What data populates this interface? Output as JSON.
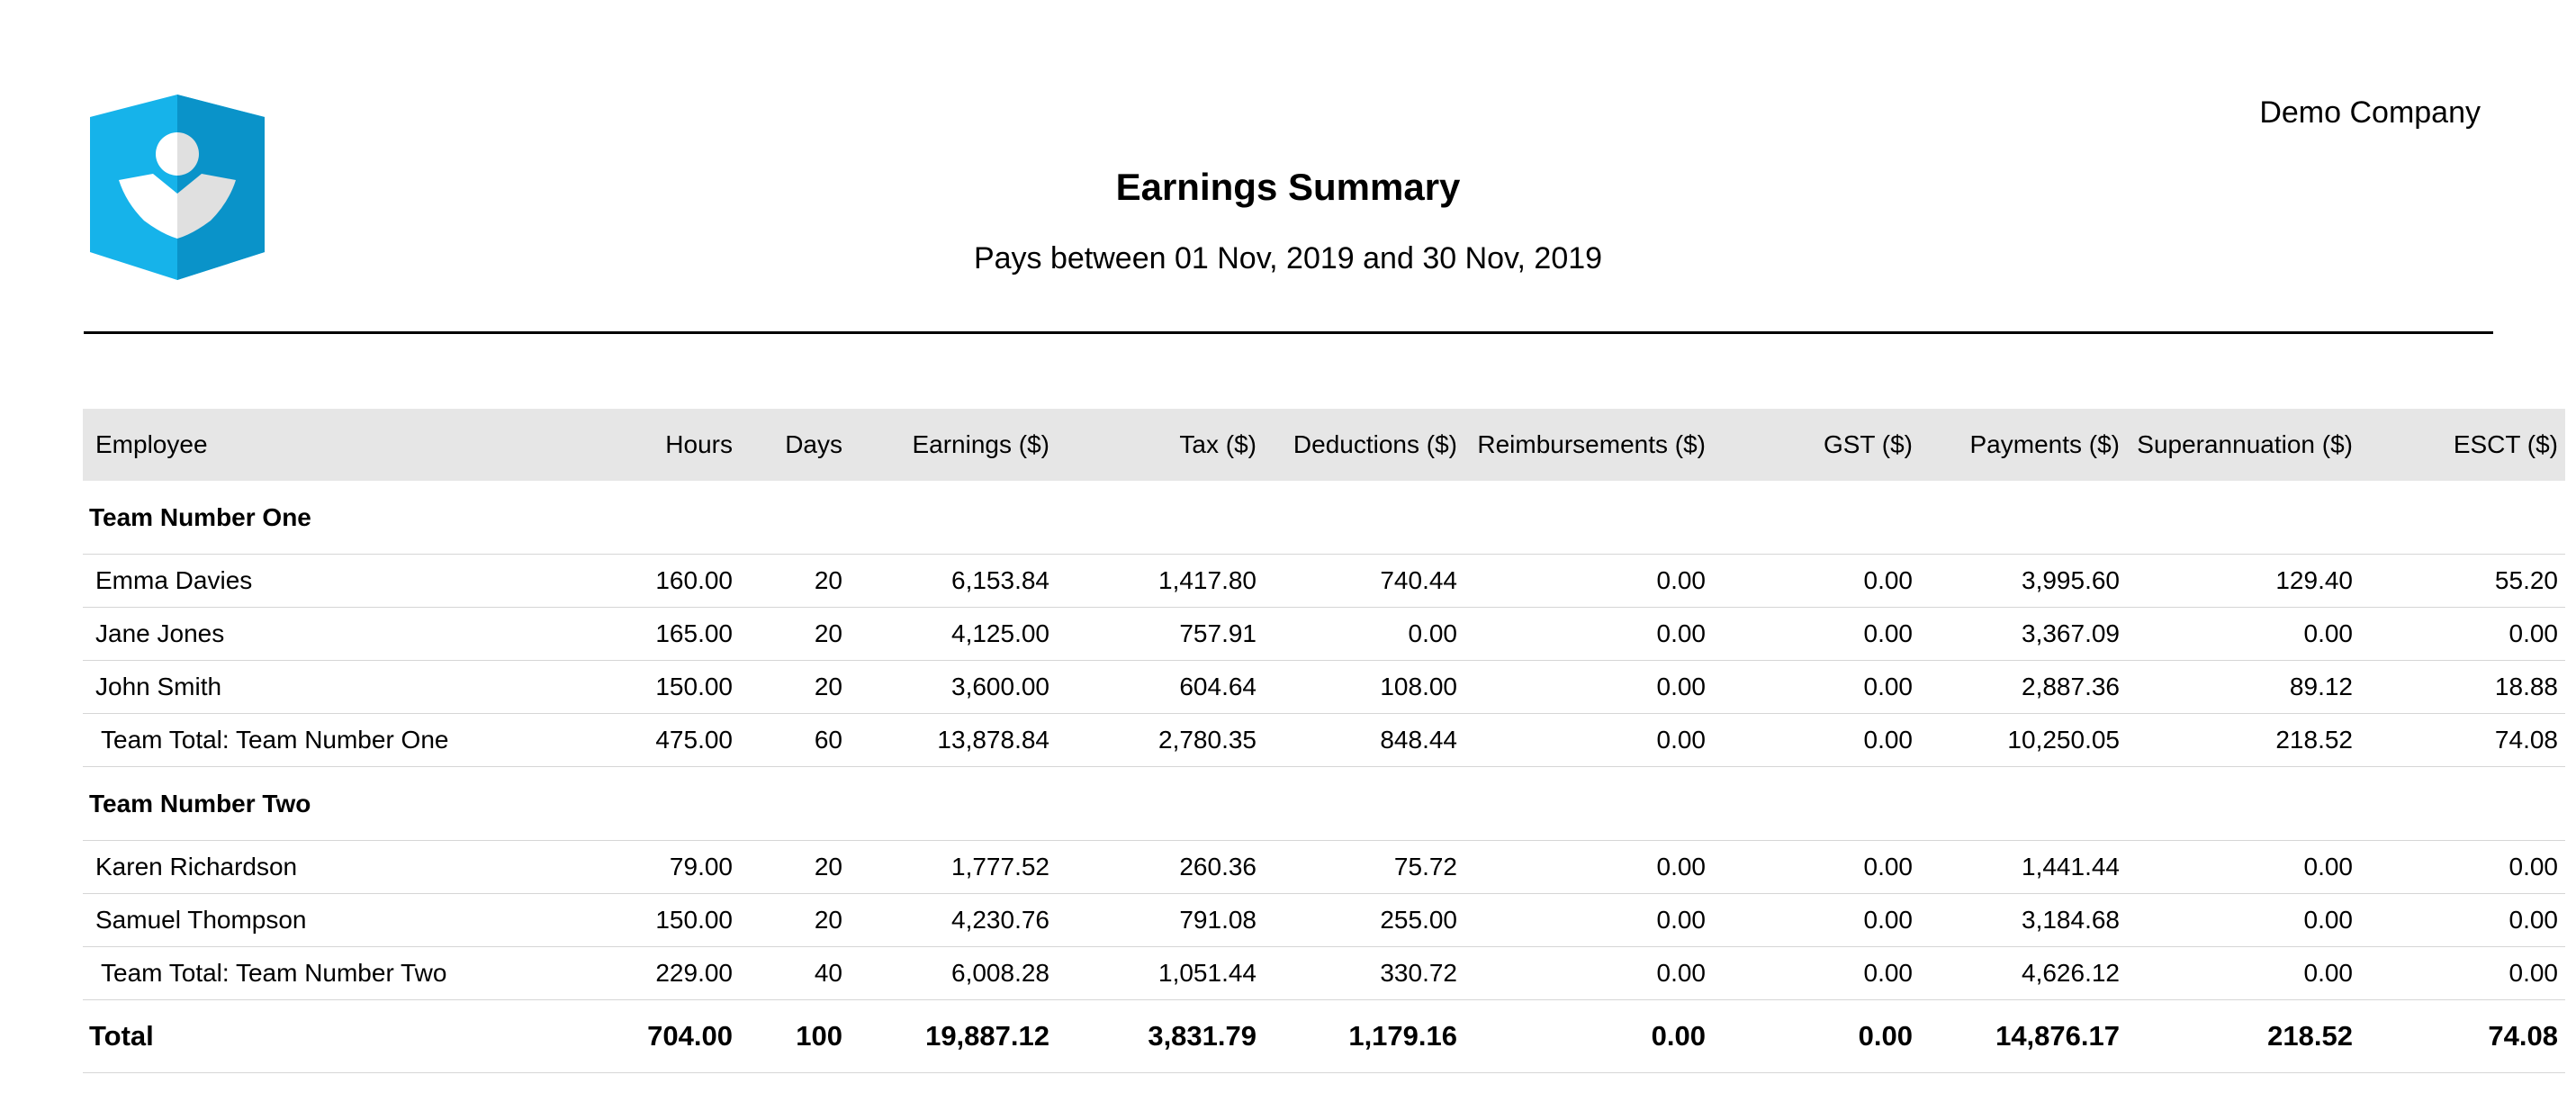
{
  "header": {
    "company": "Demo Company",
    "title": "Earnings Summary",
    "subtitle": "Pays between 01 Nov, 2019 and 30 Nov, 2019"
  },
  "table": {
    "columns": [
      "Employee",
      "Hours",
      "Days",
      "Earnings ($)",
      "Tax ($)",
      "Deductions ($)",
      "Reimbursements ($)",
      "GST ($)",
      "Payments ($)",
      "Superannuation ($)",
      "ESCT ($)"
    ],
    "groups": [
      {
        "name": "Team Number One",
        "rows": [
          [
            "Emma Davies",
            "160.00",
            "20",
            "6,153.84",
            "1,417.80",
            "740.44",
            "0.00",
            "0.00",
            "3,995.60",
            "129.40",
            "55.20"
          ],
          [
            "Jane Jones",
            "165.00",
            "20",
            "4,125.00",
            "757.91",
            "0.00",
            "0.00",
            "0.00",
            "3,367.09",
            "0.00",
            "0.00"
          ],
          [
            "John Smith",
            "150.00",
            "20",
            "3,600.00",
            "604.64",
            "108.00",
            "0.00",
            "0.00",
            "2,887.36",
            "89.12",
            "18.88"
          ]
        ],
        "total": [
          "Team Total: Team Number One",
          "475.00",
          "60",
          "13,878.84",
          "2,780.35",
          "848.44",
          "0.00",
          "0.00",
          "10,250.05",
          "218.52",
          "74.08"
        ]
      },
      {
        "name": "Team Number Two",
        "rows": [
          [
            "Karen Richardson",
            "79.00",
            "20",
            "1,777.52",
            "260.36",
            "75.72",
            "0.00",
            "0.00",
            "1,441.44",
            "0.00",
            "0.00"
          ],
          [
            "Samuel Thompson",
            "150.00",
            "20",
            "4,230.76",
            "791.08",
            "255.00",
            "0.00",
            "0.00",
            "3,184.68",
            "0.00",
            "0.00"
          ]
        ],
        "total": [
          "Team Total: Team Number Two",
          "229.00",
          "40",
          "6,008.28",
          "1,051.44",
          "330.72",
          "0.00",
          "0.00",
          "4,626.12",
          "0.00",
          "0.00"
        ]
      }
    ],
    "grand_total": [
      "Total",
      "704.00",
      "100",
      "19,887.12",
      "3,831.79",
      "1,179.16",
      "0.00",
      "0.00",
      "14,876.17",
      "218.52",
      "74.08"
    ]
  },
  "colors": {
    "logo_light": "#16b3ea",
    "logo_dark": "#0a93c9",
    "header_bg": "#e6e6e6"
  },
  "icons": {
    "logo": "company-logo-icon"
  }
}
